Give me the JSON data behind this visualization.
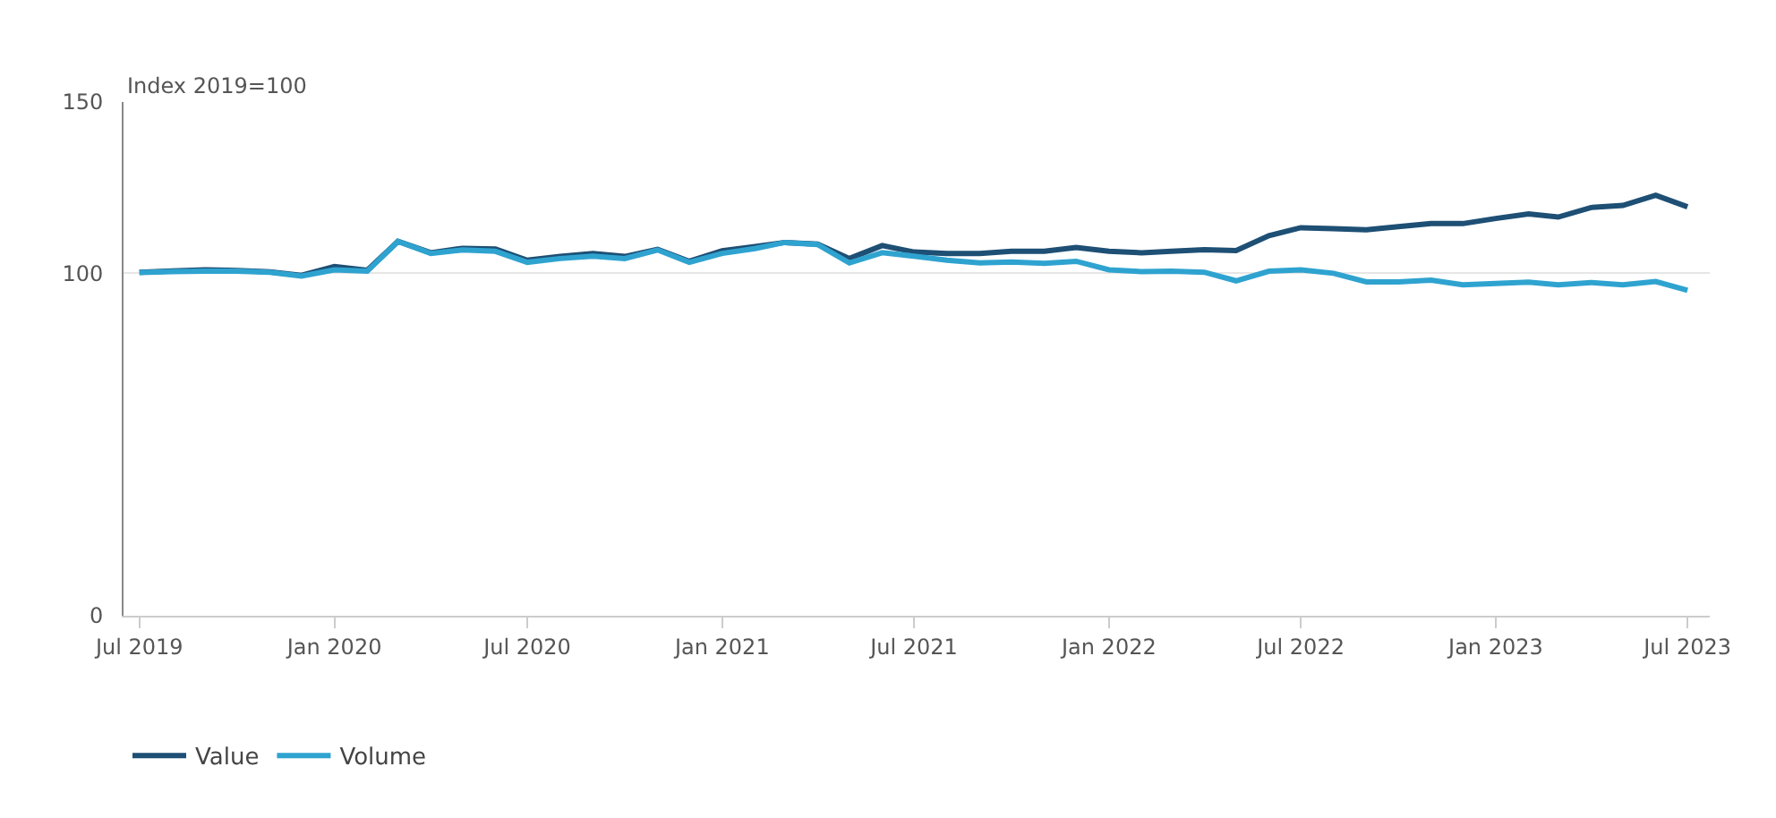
{
  "chart_data": {
    "type": "line",
    "ylabel": "Index 2019=100",
    "x": [
      "2019-07",
      "2019-08",
      "2019-09",
      "2019-10",
      "2019-11",
      "2019-12",
      "2020-01",
      "2020-02",
      "2020-03",
      "2020-04",
      "2020-05",
      "2020-06",
      "2020-07",
      "2020-08",
      "2020-09",
      "2020-10",
      "2020-11",
      "2020-12",
      "2021-01",
      "2021-02",
      "2021-03",
      "2021-04",
      "2021-05",
      "2021-06",
      "2021-07",
      "2021-08",
      "2021-09",
      "2021-10",
      "2021-11",
      "2021-12",
      "2022-01",
      "2022-02",
      "2022-03",
      "2022-04",
      "2022-05",
      "2022-06",
      "2022-07",
      "2022-08",
      "2022-09",
      "2022-10",
      "2022-11",
      "2022-12",
      "2023-01",
      "2023-02",
      "2023-03",
      "2023-04",
      "2023-05",
      "2023-06",
      "2023-07"
    ],
    "series": [
      {
        "name": "Value",
        "color": "#1e4f74",
        "values": [
          100.3,
          100.7,
          101,
          100.8,
          100.4,
          99.4,
          102,
          100.9,
          109.3,
          106,
          107.3,
          107.1,
          103.8,
          104.9,
          105.8,
          104.9,
          107,
          103.5,
          106.6,
          107.8,
          109,
          108.5,
          104.3,
          108.1,
          106.2,
          105.8,
          105.8,
          106.4,
          106.4,
          107.5,
          106.4,
          106,
          106.4,
          106.9,
          106.6,
          111,
          113.3,
          113,
          112.7,
          113.6,
          114.5,
          114.5,
          116,
          117.3,
          116.4,
          119.2,
          119.8,
          122.8,
          119.4
        ]
      },
      {
        "name": "Volume",
        "color": "#2fa3d0",
        "values": [
          100.2,
          100.5,
          100.6,
          100.6,
          100.3,
          99.2,
          101,
          100.6,
          109.3,
          105.8,
          106.8,
          106.4,
          103.2,
          104.3,
          105,
          104.3,
          106.8,
          103.2,
          105.8,
          107.2,
          109,
          108.4,
          103,
          106,
          105,
          103.8,
          103,
          103.3,
          102.9,
          103.5,
          101,
          100.5,
          100.6,
          100.3,
          97.8,
          100.6,
          101,
          100,
          97.5,
          97.5,
          98,
          96.6,
          97,
          97.4,
          96.6,
          97.3,
          96.6,
          97.6,
          95
        ]
      }
    ],
    "xlim": [
      "2019-06-16",
      "2023-07-22"
    ],
    "xticks": [
      {
        "value": "2019-07",
        "label": "Jul 2019"
      },
      {
        "value": "2020-01",
        "label": "Jan 2020"
      },
      {
        "value": "2020-07",
        "label": "Jul 2020"
      },
      {
        "value": "2021-01",
        "label": "Jan 2021"
      },
      {
        "value": "2021-07",
        "label": "Jul 2021"
      },
      {
        "value": "2022-01",
        "label": "Jan 2022"
      },
      {
        "value": "2022-07",
        "label": "Jul 2022"
      },
      {
        "value": "2023-01",
        "label": "Jan 2023"
      },
      {
        "value": "2023-07",
        "label": "Jul 2023"
      }
    ],
    "ylim": [
      0,
      150
    ],
    "yticks": [
      0,
      100,
      150
    ],
    "grid": "y",
    "legend": "bottom left",
    "marker": "none",
    "line_style": "solid"
  }
}
